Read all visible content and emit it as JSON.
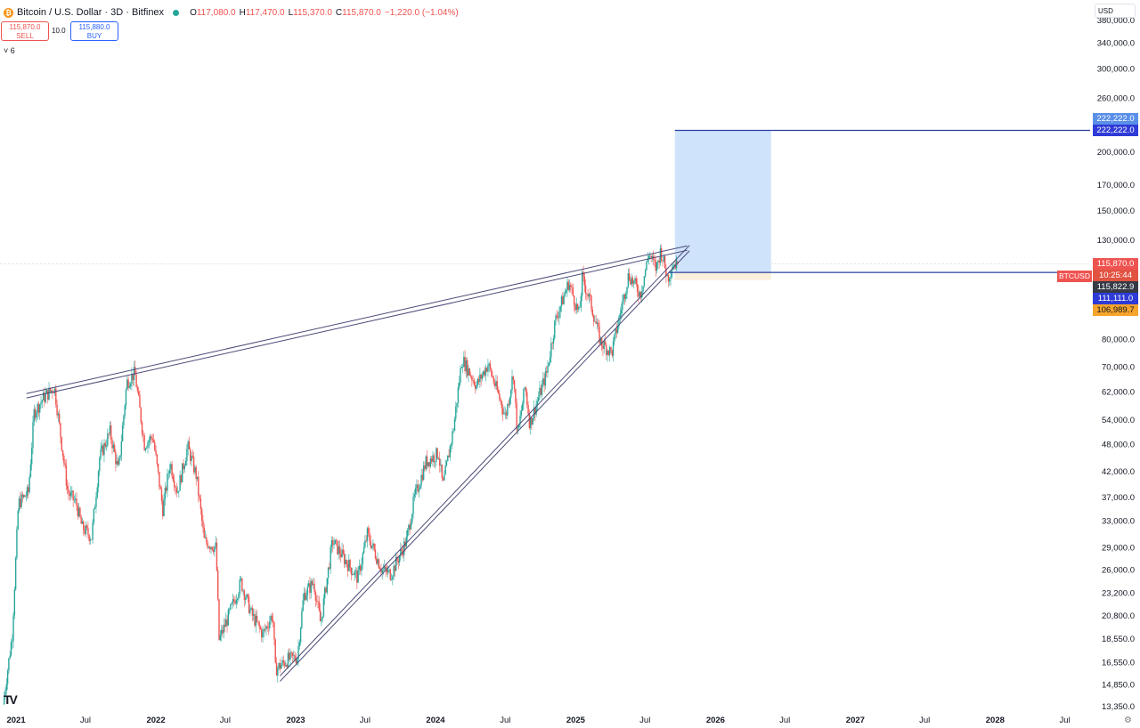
{
  "header": {
    "title": "Bitcoin / U.S. Dollar · 3D · Bitfinex",
    "coin_glyph": "₿",
    "ohlc": [
      {
        "k": "O",
        "v": "117,080.0"
      },
      {
        "k": "H",
        "v": "117,470.0"
      },
      {
        "k": "L",
        "v": "115,370.0"
      },
      {
        "k": "C",
        "v": "115,870.0"
      }
    ],
    "change": "−1,220.0 (−1.04%)"
  },
  "trade": {
    "sell_price": "115,870.0",
    "sell_label": "SELL",
    "spread": "10.0",
    "buy_price": "115,880.0",
    "buy_label": "BUY"
  },
  "collapse_label": "˅ 6",
  "currency": "USD",
  "symbol_tag": "BTCUSD",
  "tags": {
    "target_top": "222,222.0",
    "target": "222,222.0",
    "last": "115,870.0",
    "countdown": "10:25:44",
    "prev": "115,822.9",
    "entry": "111,111.0",
    "stop": "106,989.7"
  },
  "colors": {
    "up": "#26a69a",
    "down": "#ef5350",
    "trend": "#4a4a78",
    "hline": "#2a3f9c",
    "target_zone": "#cfe3fb",
    "stop_zone": "#fbf0dc",
    "last_tag": "#ef5350",
    "countdown_tag": "#e15241",
    "prev_tag": "#363a45",
    "entry_tag": "#2e3bd6",
    "target_tag": "#2e3bd6",
    "target_top_tag": "#5a8fe8",
    "stop_tag": "#f7a42b"
  },
  "chart_data": {
    "type": "candlestick",
    "y_scale": "log",
    "ylim": [
      13000,
      420000
    ],
    "xlim": [
      "2020-11-20",
      "2028-09-05"
    ],
    "y_ticks": [
      "380,000.0",
      "340,000.0",
      "300,000.0",
      "260,000.0",
      "200,000.0",
      "170,000.0",
      "150,000.0",
      "130,000.0",
      "80,000.0",
      "70,000.0",
      "62,000.0",
      "54,000.0",
      "48,000.0",
      "42,000.0",
      "37,000.0",
      "33,000.0",
      "29,000.0",
      "26,000.0",
      "23,200.0",
      "20,800.0",
      "18,550.0",
      "16,550.0",
      "14,850.0",
      "13,350.0"
    ],
    "y_tick_values": [
      380000,
      340000,
      300000,
      260000,
      200000,
      170000,
      150000,
      130000,
      80000,
      70000,
      62000,
      54000,
      48000,
      42000,
      37000,
      33000,
      29000,
      26000,
      23200,
      20800,
      18550,
      16550,
      14850,
      13350
    ],
    "x_ticks": [
      {
        "label": "2021",
        "date": "2021-01-01"
      },
      {
        "label": "Jul",
        "date": "2021-07-01"
      },
      {
        "label": "2022",
        "date": "2022-01-01"
      },
      {
        "label": "Jul",
        "date": "2022-07-01"
      },
      {
        "label": "2023",
        "date": "2023-01-01"
      },
      {
        "label": "Jul",
        "date": "2023-07-01"
      },
      {
        "label": "2024",
        "date": "2024-01-01"
      },
      {
        "label": "Jul",
        "date": "2024-07-01"
      },
      {
        "label": "2025",
        "date": "2025-01-01"
      },
      {
        "label": "Jul",
        "date": "2025-07-01"
      },
      {
        "label": "2026",
        "date": "2026-01-01"
      },
      {
        "label": "Jul",
        "date": "2026-07-01"
      },
      {
        "label": "2027",
        "date": "2027-01-01"
      },
      {
        "label": "Jul",
        "date": "2027-07-01"
      },
      {
        "label": "2028",
        "date": "2028-01-01"
      },
      {
        "label": "Jul",
        "date": "2028-07-01"
      }
    ],
    "price_path": [
      [
        "2020-12-01",
        13500
      ],
      [
        "2020-12-25",
        19000
      ],
      [
        "2021-01-10",
        36000
      ],
      [
        "2021-02-05",
        38000
      ],
      [
        "2021-02-20",
        56000
      ],
      [
        "2021-03-15",
        60000
      ],
      [
        "2021-04-14",
        63500
      ],
      [
        "2021-05-19",
        38000
      ],
      [
        "2021-06-10",
        36000
      ],
      [
        "2021-06-25",
        32000
      ],
      [
        "2021-07-20",
        30500
      ],
      [
        "2021-08-10",
        45000
      ],
      [
        "2021-09-06",
        51000
      ],
      [
        "2021-09-28",
        42000
      ],
      [
        "2021-10-20",
        65000
      ],
      [
        "2021-11-10",
        68000
      ],
      [
        "2021-12-05",
        48000
      ],
      [
        "2021-12-27",
        50000
      ],
      [
        "2022-01-22",
        35000
      ],
      [
        "2022-02-10",
        44000
      ],
      [
        "2022-03-01",
        38000
      ],
      [
        "2022-03-28",
        47500
      ],
      [
        "2022-04-20",
        41000
      ],
      [
        "2022-05-10",
        30000
      ],
      [
        "2022-06-10",
        29000
      ],
      [
        "2022-06-18",
        18500
      ],
      [
        "2022-07-10",
        20500
      ],
      [
        "2022-08-14",
        24500
      ],
      [
        "2022-09-10",
        21000
      ],
      [
        "2022-10-10",
        19000
      ],
      [
        "2022-11-05",
        21000
      ],
      [
        "2022-11-12",
        16000
      ],
      [
        "2022-12-15",
        16800
      ],
      [
        "2023-01-08",
        17000
      ],
      [
        "2023-01-25",
        23000
      ],
      [
        "2023-02-20",
        24500
      ],
      [
        "2023-03-10",
        20000
      ],
      [
        "2023-04-10",
        30000
      ],
      [
        "2023-05-10",
        27500
      ],
      [
        "2023-06-15",
        25000
      ],
      [
        "2023-07-10",
        31000
      ],
      [
        "2023-08-17",
        26000
      ],
      [
        "2023-09-10",
        25500
      ],
      [
        "2023-10-20",
        30000
      ],
      [
        "2023-11-10",
        37000
      ],
      [
        "2023-12-10",
        44000
      ],
      [
        "2024-01-12",
        46000
      ],
      [
        "2024-01-23",
        39000
      ],
      [
        "2024-02-20",
        52000
      ],
      [
        "2024-03-13",
        73000
      ],
      [
        "2024-04-20",
        64000
      ],
      [
        "2024-05-20",
        71000
      ],
      [
        "2024-07-05",
        55000
      ],
      [
        "2024-07-25",
        68000
      ],
      [
        "2024-08-05",
        50000
      ],
      [
        "2024-08-25",
        64000
      ],
      [
        "2024-09-06",
        53000
      ],
      [
        "2024-10-20",
        68000
      ],
      [
        "2024-11-12",
        88000
      ],
      [
        "2024-12-17",
        106000
      ],
      [
        "2025-01-13",
        90000
      ],
      [
        "2025-01-21",
        108000
      ],
      [
        "2025-02-10",
        97000
      ],
      [
        "2025-03-10",
        79000
      ],
      [
        "2025-04-08",
        75000
      ],
      [
        "2025-05-05",
        95000
      ],
      [
        "2025-05-22",
        110000
      ],
      [
        "2025-06-22",
        100000
      ],
      [
        "2025-07-14",
        122000
      ],
      [
        "2025-08-02",
        113000
      ],
      [
        "2025-08-14",
        124000
      ],
      [
        "2025-09-01",
        108000
      ],
      [
        "2025-09-15",
        116000
      ],
      [
        "2025-09-24",
        115870
      ]
    ],
    "last_candle": {
      "open": 117080,
      "high": 117470,
      "low": 115370,
      "close": 115870
    },
    "trendlines": [
      {
        "from": [
          "2021-01-28",
          61500
        ],
        "to": [
          "2025-10-19",
          126500
        ]
      },
      {
        "from": [
          "2021-01-28",
          60200
        ],
        "to": [
          "2025-10-19",
          123800
        ]
      },
      {
        "from": [
          "2022-11-21",
          15100
        ],
        "to": [
          "2025-10-25",
          123500
        ]
      },
      {
        "from": [
          "2022-11-21",
          15500
        ],
        "to": [
          "2025-10-25",
          126800
        ]
      }
    ],
    "hlines": [
      {
        "value": 222222,
        "from": "2025-09-17",
        "to": "2028-09-05"
      },
      {
        "value": 111111,
        "from": "2025-08-31",
        "to": "2028-09-05"
      }
    ],
    "position": {
      "from": "2025-09-17",
      "to": "2026-05-26",
      "entry": 111111,
      "target": 222222,
      "stop": 106989.7,
      "last": 115870
    }
  }
}
